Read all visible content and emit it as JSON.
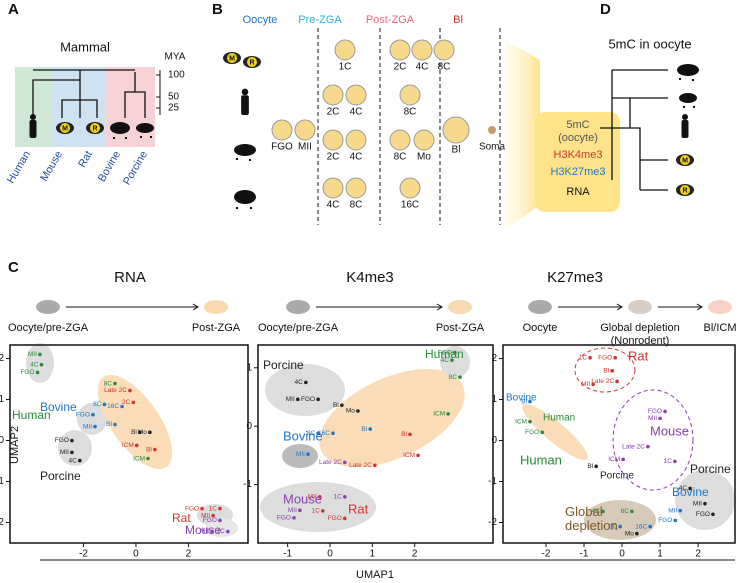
{
  "species_marks": [
    "M",
    "R"
  ],
  "panels": {
    "A": {
      "letter": "A",
      "title": "Mammal",
      "unit": "MYA",
      "ticks": [
        100,
        50,
        25
      ],
      "species": [
        "Human",
        "Mouse",
        "Rat",
        "Bovine",
        "Porcine"
      ]
    },
    "B": {
      "letter": "B",
      "stages": [
        "Oocyte",
        "Pre-ZGA",
        "Post-ZGA",
        "Bl"
      ],
      "stage_colors": [
        "#1f77c4",
        "#2fb3d6",
        "#e96a7a",
        "#d0342c"
      ],
      "rows": [
        [
          "1C",
          "2C",
          "4C",
          "8C"
        ],
        [
          "2C",
          "4C",
          "8C"
        ],
        [
          "FGO",
          "MII",
          "2C",
          "4C",
          "8C",
          "Mo",
          "Bl",
          "Soma"
        ],
        [
          "4C",
          "8C",
          "16C"
        ]
      ],
      "marks": [
        "5mC",
        "(oocyte)",
        "H3K4me3",
        "H3K27me3",
        "RNA"
      ],
      "mark_colors": [
        "#555",
        "#555",
        "#c0392b",
        "#1f77c4",
        "#111"
      ]
    },
    "C": {
      "letter": "C",
      "x_label": "UMAP1",
      "y_label": "UMAP2",
      "schemes": [
        {
          "title": "RNA",
          "stages": [
            [
              "Oocyte/pre-ZGA"
            ],
            [
              "Post-ZGA"
            ]
          ]
        },
        {
          "title": "K4me3",
          "stages": [
            [
              "Oocyte/pre-ZGA"
            ],
            [
              "Post-ZGA"
            ]
          ]
        },
        {
          "title": "K27me3",
          "stages": [
            [
              "Oocyte"
            ],
            [
              "Global depletion",
              "(Nonrodent)"
            ],
            [
              "Bl/ICM"
            ]
          ]
        }
      ]
    },
    "D": {
      "letter": "D",
      "title": "5mC in oocyte"
    }
  },
  "chart_data": [
    {
      "type": "scatter",
      "xlim": [
        -4.8,
        4.27
      ],
      "ylim": [
        -2.5,
        2.33
      ],
      "xticks": [
        -2,
        0,
        2
      ],
      "yticks": [
        2,
        1,
        0,
        -1,
        -2
      ],
      "point_labels": [
        "MII",
        "4C",
        "FGO",
        "FGO",
        "MII",
        "8C",
        "Late 2C",
        "8C",
        "16C",
        "Bl",
        "2C",
        "Bl",
        "Mo",
        "ICM",
        "Bl",
        "ICM",
        "FGO",
        "MII",
        "4C",
        "FGO",
        "1C",
        "MII",
        "FGO",
        "MII",
        "1C"
      ],
      "x": [
        -3.66,
        -3.6,
        -3.75,
        -1.64,
        -1.56,
        -0.8,
        -0.23,
        -1.2,
        -0.53,
        -0.8,
        -0.1,
        0.15,
        0.53,
        0.03,
        0.72,
        0.46,
        -2.44,
        -2.44,
        -2.14,
        2.52,
        3.2,
        2.94,
        3.2,
        2.9,
        3.5
      ],
      "values": [
        2.1,
        1.85,
        1.66,
        0.63,
        0.34,
        1.39,
        1.22,
        0.88,
        0.83,
        0.39,
        0.93,
        0.2,
        0.2,
        -0.12,
        -0.22,
        -0.44,
        0,
        -0.29,
        -0.49,
        -1.66,
        -1.66,
        -1.83,
        -1.95,
        -2.22,
        -2.22
      ],
      "colors": [
        "#2a8a3a",
        "#2a8a3a",
        "#2a8a3a",
        "#1f77c4",
        "#1f77c4",
        "#2a8a3a",
        "#d0342c",
        "#1f77c4",
        "#1f77c4",
        "#1f77c4",
        "#d0342c",
        "#222",
        "#222",
        "#d0342c",
        "#d0342c",
        "#2a8a3a",
        "#222",
        "#222",
        "#222",
        "#d0342c",
        "#d0342c",
        "#d0342c",
        "#8a3fb0",
        "#8a3fb0",
        "#8a3fb0"
      ],
      "annotations": [
        "Human",
        "Bovine",
        "Porcine",
        "Rat",
        "Mouse"
      ],
      "annotation_colors": [
        "#2a8a3a",
        "#1f77c4",
        "#222",
        "#d0342c",
        "#8a3fb0"
      ]
    },
    {
      "type": "scatter",
      "xlim": [
        -1.7,
        3.85
      ],
      "ylim": [
        -2.0,
        1.39
      ],
      "xticks": [
        -1,
        0,
        1,
        2
      ],
      "yticks": [
        1,
        0,
        -1
      ],
      "point_labels": [
        "4C",
        "MII",
        "FGO",
        "MII",
        "FGO",
        "4C",
        "8C",
        "ICM",
        "Bl",
        "Mo",
        "8C",
        "16C",
        "Bl",
        "Bl",
        "ICM",
        "Late 2C",
        "Late 2C",
        "1C",
        "MII",
        "FGO",
        "MII",
        "FGO",
        "1C"
      ],
      "x": [
        -0.57,
        -0.76,
        -0.28,
        -0.52,
        2.95,
        2.88,
        3.07,
        2.79,
        0.28,
        0.66,
        -0.28,
        0.07,
        0.95,
        1.89,
        2.08,
        1.06,
        0.35,
        0.35,
        -0.24,
        -0.85,
        -0.71,
        0.35,
        -0.17
      ],
      "values": [
        0.75,
        0.46,
        0.46,
        -0.48,
        1.26,
        1.13,
        0.84,
        0.21,
        0.36,
        0.26,
        -0.12,
        -0.12,
        -0.05,
        -0.14,
        -0.5,
        -0.67,
        -0.62,
        -1.21,
        -1.21,
        -1.57,
        -1.44,
        -1.58,
        -1.45
      ],
      "colors": [
        "#222",
        "#222",
        "#222",
        "#1f77c4",
        "#2a8a3a",
        "#2a8a3a",
        "#2a8a3a",
        "#2a8a3a",
        "#222",
        "#222",
        "#1f77c4",
        "#1f77c4",
        "#1f77c4",
        "#d0342c",
        "#d0342c",
        "#d0342c",
        "#8a3fb0",
        "#8a3fb0",
        "#d0342c",
        "#8a3fb0",
        "#8a3fb0",
        "#d0342c",
        "#d0342c"
      ],
      "annotations": [
        "Porcine",
        "Human",
        "Bovine",
        "Mouse",
        "Rat"
      ],
      "annotation_colors": [
        "#222",
        "#2a8a3a",
        "#1f77c4",
        "#8a3fb0",
        "#d0342c"
      ]
    },
    {
      "type": "scatter",
      "xlim": [
        -3.13,
        2.97
      ],
      "ylim": [
        -2.5,
        2.33
      ],
      "xticks": [
        -2,
        -1,
        0,
        1,
        2
      ],
      "yticks": [
        2,
        1,
        0,
        -1,
        -2
      ],
      "point_labels": [
        "1C",
        "FGO",
        "Bl",
        "MII",
        "Late 2C",
        "Bl",
        "ICM",
        "FGO",
        "FGO",
        "MII",
        "Late 2C",
        "1C",
        "ICM",
        "Bl",
        "4C",
        "MII",
        "FGO",
        "MII",
        "FGO",
        "4C",
        "8C",
        "8C",
        "16C",
        "Mo"
      ],
      "x": [
        -0.84,
        -0.18,
        -0.26,
        -0.76,
        -0.13,
        -2.42,
        -2.42,
        -2.1,
        1.13,
        1.0,
        0.68,
        1.39,
        0.03,
        -0.68,
        1.79,
        2.18,
        2.39,
        1.53,
        1.4,
        -0.5,
        0.26,
        -0.05,
        0.74,
        0.39
      ],
      "values": [
        2.02,
        2.02,
        1.7,
        1.37,
        1.44,
        0.95,
        0.46,
        0.2,
        0.71,
        0.54,
        -0.15,
        -0.51,
        -0.46,
        -0.63,
        -1.17,
        -1.54,
        -1.8,
        -1.71,
        -1.95,
        -1.73,
        -1.73,
        -2.1,
        -2.1,
        -2.27
      ],
      "colors": [
        "#d0342c",
        "#d0342c",
        "#d0342c",
        "#d0342c",
        "#d0342c",
        "#1f77c4",
        "#2a8a3a",
        "#2a8a3a",
        "#8a3fb0",
        "#8a3fb0",
        "#8a3fb0",
        "#8a3fb0",
        "#8a3fb0",
        "#222",
        "#222",
        "#222",
        "#222",
        "#1f77c4",
        "#1f77c4",
        "#2a8a3a",
        "#2a8a3a",
        "#1f77c4",
        "#1f77c4",
        "#222"
      ],
      "annotations": [
        "Rat",
        "Bovine",
        "Human",
        "Human",
        "Porcine",
        "Mouse",
        "Bovine",
        "Porcine",
        "Global depletion"
      ],
      "annotation_colors": [
        "#d0342c",
        "#1f77c4",
        "#2a8a3a",
        "#2a8a3a",
        "#222",
        "#8a3fb0",
        "#1f77c4",
        "#222",
        "#7a5a2a"
      ]
    }
  ]
}
